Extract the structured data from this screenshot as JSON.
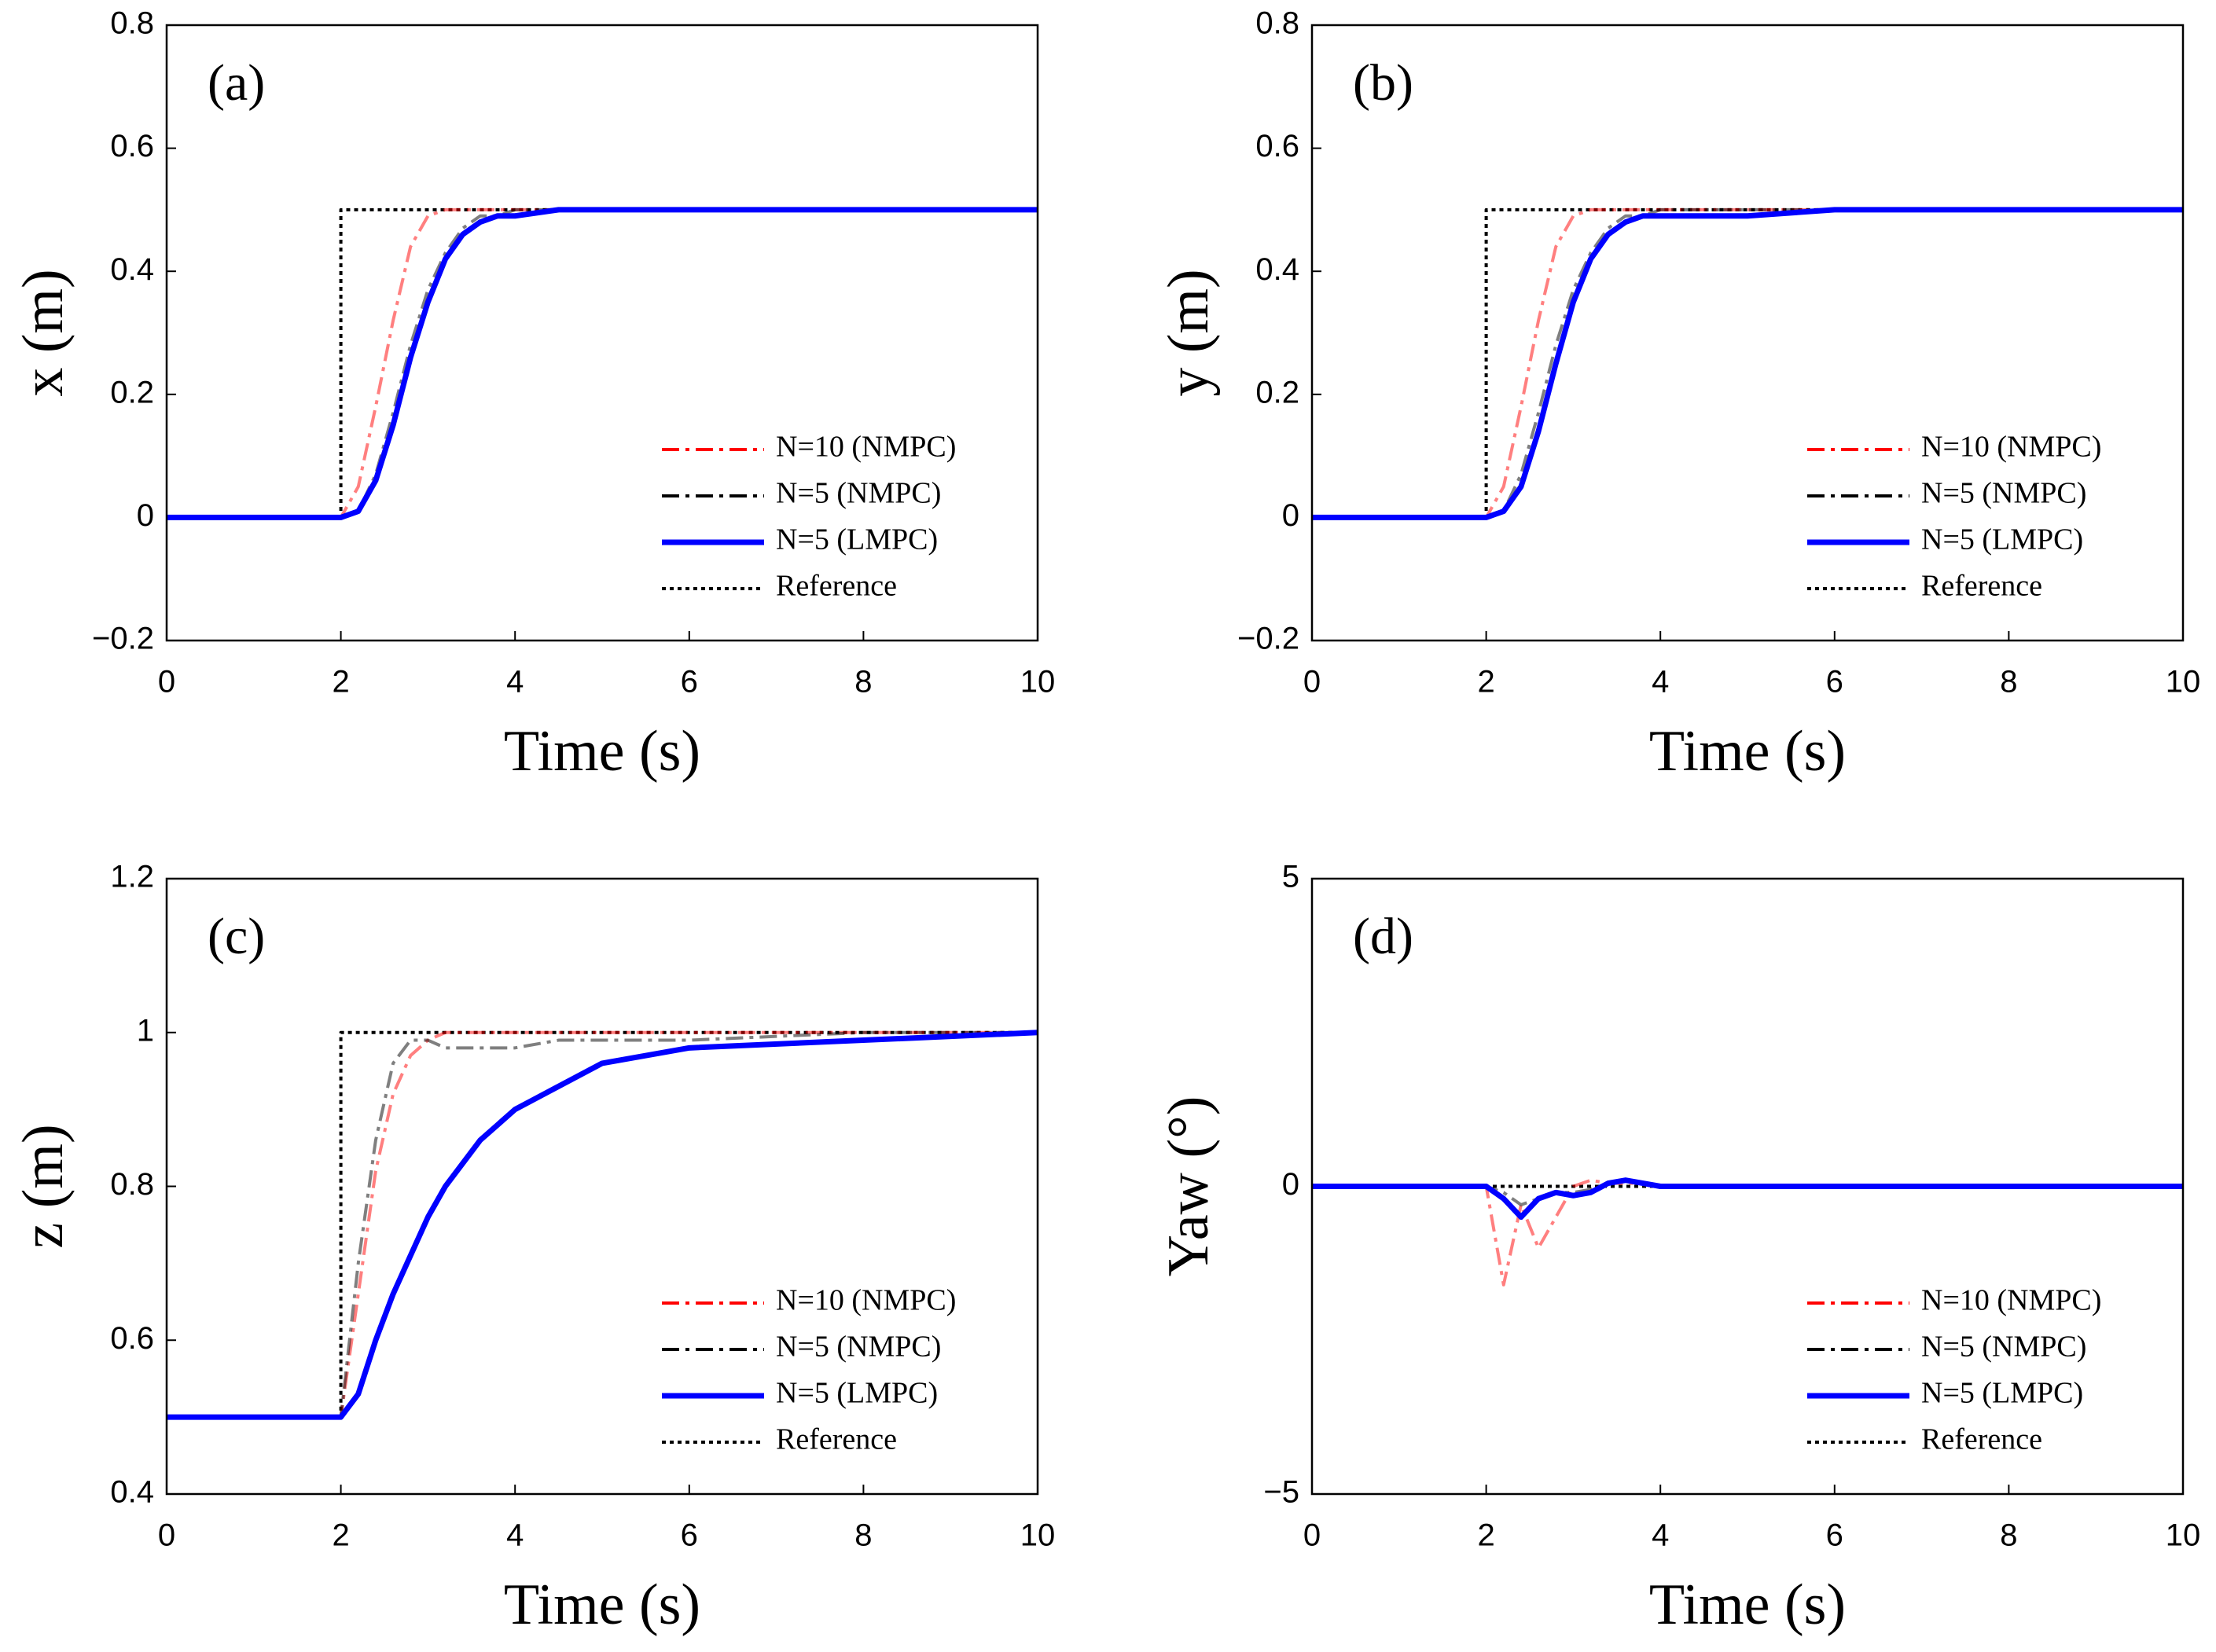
{
  "chart_data": [
    {
      "type": "line",
      "panel_label": "(a)",
      "xlabel": "Time (s)",
      "ylabel": "x (m)",
      "x": [
        0,
        1,
        2,
        2,
        2.2,
        2.4,
        2.6,
        2.8,
        3,
        3.2,
        3.4,
        3.6,
        3.8,
        4,
        4.5,
        5,
        6,
        8,
        10
      ],
      "xlim": [
        0,
        10
      ],
      "xticks": [
        0,
        2,
        4,
        6,
        8,
        10
      ],
      "ylim": [
        -0.2,
        0.8
      ],
      "yticks": [
        {
          "value": -0.2,
          "label": "−0.2"
        },
        0,
        0.2,
        0.4,
        0.6,
        0.8
      ],
      "legend": "lower right",
      "series": [
        {
          "name": "N=10 (NMPC)",
          "color": "#ff0000",
          "linestyle": "dashdot",
          "values": [
            0,
            0,
            0,
            0,
            0.05,
            0.18,
            0.32,
            0.44,
            0.49,
            0.5,
            0.5,
            0.5,
            0.5,
            0.5,
            0.5,
            0.5,
            0.5,
            0.5,
            0.5
          ]
        },
        {
          "name": "N=5 (NMPC)",
          "color": "#000000",
          "linestyle": "dashdot",
          "values": [
            0,
            0,
            0,
            0,
            0.01,
            0.07,
            0.17,
            0.28,
            0.37,
            0.43,
            0.47,
            0.49,
            0.49,
            0.5,
            0.5,
            0.5,
            0.5,
            0.5,
            0.5
          ]
        },
        {
          "name": "N=5 (LMPC)",
          "color": "#0000ff",
          "linestyle": "solid",
          "values": [
            0,
            0,
            0,
            0,
            0.01,
            0.06,
            0.15,
            0.26,
            0.35,
            0.42,
            0.46,
            0.48,
            0.49,
            0.49,
            0.5,
            0.5,
            0.5,
            0.5,
            0.5
          ]
        },
        {
          "name": "Reference",
          "color": "#000000",
          "linestyle": "dotted",
          "values": [
            0,
            0,
            0,
            0.5,
            0.5,
            0.5,
            0.5,
            0.5,
            0.5,
            0.5,
            0.5,
            0.5,
            0.5,
            0.5,
            0.5,
            0.5,
            0.5,
            0.5,
            0.5
          ]
        }
      ]
    },
    {
      "type": "line",
      "panel_label": "(b)",
      "xlabel": "Time (s)",
      "ylabel": "y (m)",
      "x": [
        0,
        1,
        2,
        2,
        2.2,
        2.4,
        2.6,
        2.8,
        3,
        3.2,
        3.4,
        3.6,
        3.8,
        4,
        4.5,
        5,
        6,
        8,
        10
      ],
      "xlim": [
        0,
        10
      ],
      "xticks": [
        0,
        2,
        4,
        6,
        8,
        10
      ],
      "ylim": [
        -0.2,
        0.8
      ],
      "yticks": [
        {
          "value": -0.2,
          "label": "−0.2"
        },
        0,
        0.2,
        0.4,
        0.6,
        0.8
      ],
      "legend": "lower right",
      "series": [
        {
          "name": "N=10 (NMPC)",
          "color": "#ff0000",
          "linestyle": "dashdot",
          "values": [
            0,
            0,
            0,
            0,
            0.05,
            0.18,
            0.32,
            0.44,
            0.49,
            0.5,
            0.5,
            0.5,
            0.5,
            0.5,
            0.5,
            0.5,
            0.5,
            0.5,
            0.5
          ]
        },
        {
          "name": "N=5 (NMPC)",
          "color": "#000000",
          "linestyle": "dashdot",
          "values": [
            0,
            0,
            0,
            0,
            0.01,
            0.07,
            0.17,
            0.28,
            0.37,
            0.43,
            0.47,
            0.49,
            0.49,
            0.5,
            0.5,
            0.5,
            0.5,
            0.5,
            0.5
          ]
        },
        {
          "name": "N=5 (LMPC)",
          "color": "#0000ff",
          "linestyle": "solid",
          "values": [
            0,
            0,
            0,
            0,
            0.01,
            0.05,
            0.14,
            0.25,
            0.35,
            0.42,
            0.46,
            0.48,
            0.49,
            0.49,
            0.49,
            0.49,
            0.5,
            0.5,
            0.5
          ]
        },
        {
          "name": "Reference",
          "color": "#000000",
          "linestyle": "dotted",
          "values": [
            0,
            0,
            0,
            0.5,
            0.5,
            0.5,
            0.5,
            0.5,
            0.5,
            0.5,
            0.5,
            0.5,
            0.5,
            0.5,
            0.5,
            0.5,
            0.5,
            0.5,
            0.5
          ]
        }
      ]
    },
    {
      "type": "line",
      "panel_label": "(c)",
      "xlabel": "Time (s)",
      "ylabel": "z (m)",
      "x": [
        0,
        1,
        2,
        2,
        2.2,
        2.4,
        2.6,
        2.8,
        3,
        3.2,
        3.4,
        3.6,
        3.8,
        4,
        4.5,
        5,
        6,
        8,
        10
      ],
      "xlim": [
        0,
        10
      ],
      "xticks": [
        0,
        2,
        4,
        6,
        8,
        10
      ],
      "ylim": [
        0.4,
        1.2
      ],
      "yticks": [
        0.4,
        0.6,
        0.8,
        1,
        1.2
      ],
      "legend": "lower right",
      "series": [
        {
          "name": "N=10 (NMPC)",
          "color": "#ff0000",
          "linestyle": "dashdot",
          "values": [
            0.5,
            0.5,
            0.5,
            0.5,
            0.66,
            0.82,
            0.92,
            0.97,
            0.99,
            1.0,
            1.0,
            1.0,
            1.0,
            1.0,
            1.0,
            1.0,
            1.0,
            1.0,
            1.0
          ]
        },
        {
          "name": "N=5 (NMPC)",
          "color": "#000000",
          "linestyle": "dashdot",
          "values": [
            0.5,
            0.5,
            0.5,
            0.5,
            0.7,
            0.86,
            0.96,
            0.99,
            0.99,
            0.98,
            0.98,
            0.98,
            0.98,
            0.98,
            0.99,
            0.99,
            0.99,
            1.0,
            1.0
          ]
        },
        {
          "name": "N=5 (LMPC)",
          "color": "#0000ff",
          "linestyle": "solid",
          "values": [
            0.5,
            0.5,
            0.5,
            0.5,
            0.53,
            0.6,
            0.66,
            0.71,
            0.76,
            0.8,
            0.83,
            0.86,
            0.88,
            0.9,
            0.93,
            0.96,
            0.98,
            0.99,
            1.0
          ]
        },
        {
          "name": "Reference",
          "color": "#000000",
          "linestyle": "dotted",
          "values": [
            0.5,
            0.5,
            0.5,
            1,
            1,
            1,
            1,
            1,
            1,
            1,
            1,
            1,
            1,
            1,
            1,
            1,
            1,
            1,
            1
          ]
        }
      ]
    },
    {
      "type": "line",
      "panel_label": "(d)",
      "xlabel": "Time (s)",
      "ylabel": "Yaw (°)",
      "x": [
        0,
        1,
        2,
        2,
        2.2,
        2.4,
        2.6,
        2.8,
        3,
        3.2,
        3.4,
        3.6,
        3.8,
        4,
        4.5,
        5,
        6,
        8,
        10
      ],
      "xlim": [
        0,
        10
      ],
      "xticks": [
        0,
        2,
        4,
        6,
        8,
        10
      ],
      "ylim": [
        -5,
        5
      ],
      "yticks": [
        {
          "value": -5,
          "label": "−5"
        },
        0,
        5
      ],
      "legend": "lower right",
      "series": [
        {
          "name": "N=10 (NMPC)",
          "color": "#ff0000",
          "linestyle": "dashdot",
          "values": [
            0,
            0,
            0,
            0,
            -1.6,
            -0.3,
            -1.0,
            -0.5,
            0,
            0.1,
            0.05,
            0.05,
            0.05,
            0,
            0,
            0,
            0,
            0,
            0
          ]
        },
        {
          "name": "N=5 (NMPC)",
          "color": "#000000",
          "linestyle": "dashdot",
          "values": [
            0,
            0,
            0,
            0,
            -0.1,
            -0.3,
            -0.2,
            -0.1,
            -0.1,
            -0.05,
            0.05,
            0.1,
            0.05,
            0,
            0,
            0,
            0,
            0,
            0
          ]
        },
        {
          "name": "N=5 (LMPC)",
          "color": "#0000ff",
          "linestyle": "solid",
          "values": [
            0,
            0,
            0,
            0,
            -0.2,
            -0.5,
            -0.2,
            -0.1,
            -0.15,
            -0.1,
            0.05,
            0.1,
            0.05,
            0,
            0,
            0,
            0,
            0,
            0
          ]
        },
        {
          "name": "Reference",
          "color": "#000000",
          "linestyle": "dotted",
          "values": [
            0,
            0,
            0,
            0,
            0,
            0,
            0,
            0,
            0,
            0,
            0,
            0,
            0,
            0,
            0,
            0,
            0,
            0,
            0
          ]
        }
      ]
    }
  ]
}
